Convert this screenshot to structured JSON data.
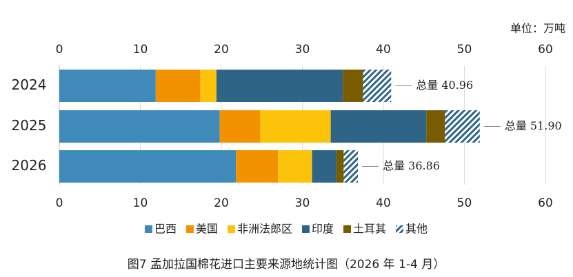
{
  "chart_data": {
    "type": "stacked-barh",
    "title": "图7  孟加拉国棉花进口主要来源地统计图（2026 年 1-4 月）",
    "unit": "单位：万吨",
    "categories": [
      "2024",
      "2025",
      "2026"
    ],
    "series": [
      {
        "name": "巴西",
        "color": "#3f8ab8",
        "values": [
          11.9,
          19.8,
          21.8
        ]
      },
      {
        "name": "美国",
        "color": "#f39200",
        "values": [
          5.5,
          5.0,
          5.2
        ]
      },
      {
        "name": "非洲法郎区",
        "color": "#fcc30b",
        "values": [
          2.0,
          8.7,
          4.2
        ]
      },
      {
        "name": "印度",
        "color": "#2e6486",
        "values": [
          15.6,
          11.8,
          3.0
        ]
      },
      {
        "name": "土耳其",
        "color": "#7a5c00",
        "values": [
          2.5,
          2.3,
          0.9
        ]
      },
      {
        "name": "其他",
        "color": "#2e6486",
        "hatch": true,
        "values": [
          3.46,
          4.3,
          1.76
        ]
      }
    ],
    "totals": [
      40.96,
      51.9,
      36.86
    ],
    "total_labels": [
      "总量 40.96",
      "总量 51.90",
      "总量 36.86"
    ],
    "xlim": [
      0,
      60
    ],
    "xticks": [
      0,
      10,
      20,
      30,
      40,
      50,
      60
    ],
    "grid": true
  }
}
